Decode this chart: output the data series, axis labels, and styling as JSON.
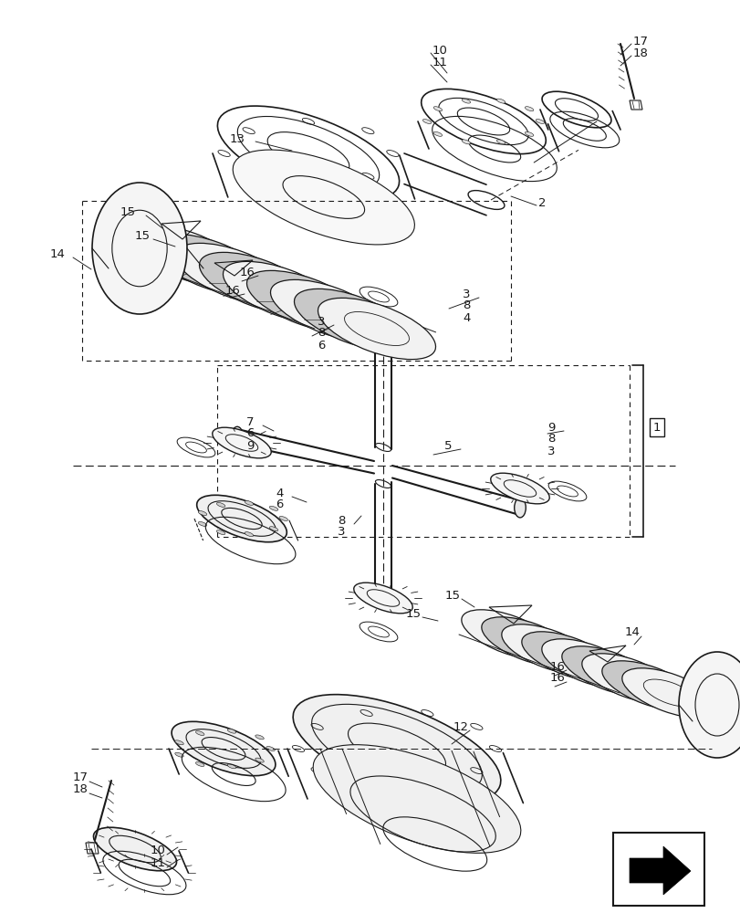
{
  "bg_color": "#ffffff",
  "lc": "#1a1a1a",
  "fig_w": 8.12,
  "fig_h": 10.0,
  "dpi": 100,
  "xmin": 0,
  "xmax": 812,
  "ymin": 0,
  "ymax": 1000
}
